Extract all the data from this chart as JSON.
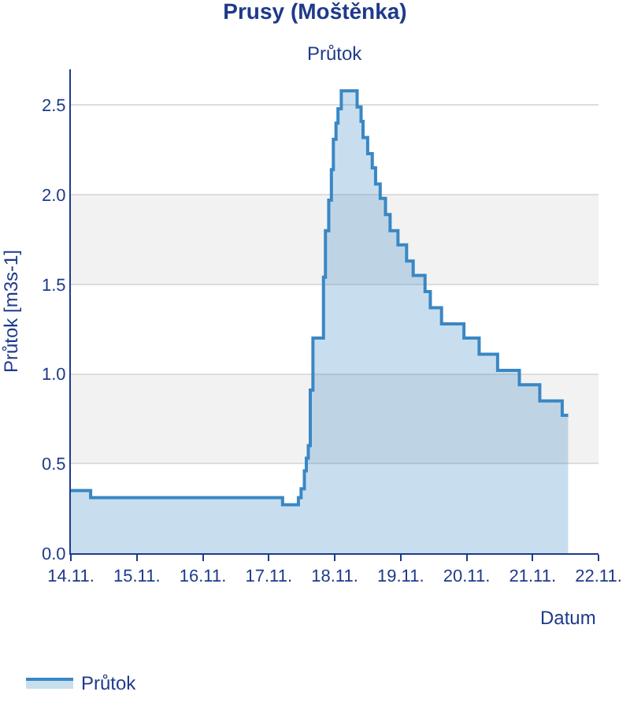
{
  "chart_data": {
    "type": "area",
    "title": "Prusy (Moštěnka)",
    "subtitle": "Průtok",
    "xlabel": "Datum",
    "ylabel": "Průtok [m3s-1]",
    "x": [
      "--11-14T00:00",
      "--11-14T07:12",
      "--11-14T07:12",
      "--11-17T05:02",
      "--11-17T05:02",
      "--11-17T10:48",
      "--11-17T10:48",
      "--11-17T11:46",
      "--11-17T11:46",
      "--11-17T12:58",
      "--11-17T12:58",
      "--11-17T13:41",
      "--11-17T13:41",
      "--11-17T14:24",
      "--11-17T14:24",
      "--11-17T15:07",
      "--11-17T15:07",
      "--11-17T16:05",
      "--11-17T16:05",
      "--11-17T19:55",
      "--11-17T19:55",
      "--11-17T20:38",
      "--11-17T20:38",
      "--11-17T21:50",
      "--11-17T21:50",
      "--11-17T22:48",
      "--11-17T22:48",
      "--11-17T23:31",
      "--11-17T23:31",
      "--11-18T00:29",
      "--11-18T00:29",
      "--11-18T01:12",
      "--11-18T01:12",
      "--11-18T02:24",
      "--11-18T02:24",
      "--11-18T08:10",
      "--11-18T08:10",
      "--11-18T09:36",
      "--11-18T09:36",
      "--11-18T10:19",
      "--11-18T10:19",
      "--11-18T12:00",
      "--11-18T12:00",
      "--11-18T13:41",
      "--11-18T13:41",
      "--11-18T14:53",
      "--11-18T14:53",
      "--11-18T16:34",
      "--11-18T16:34",
      "--11-18T18:29",
      "--11-18T18:29",
      "--11-18T20:10",
      "--11-18T20:10",
      "--11-18T23:02",
      "--11-18T23:02",
      "--11-19T02:10",
      "--11-19T02:10",
      "--11-19T04:34",
      "--11-19T04:34",
      "--11-19T08:53",
      "--11-19T08:53",
      "--11-19T10:48",
      "--11-19T10:48",
      "--11-19T14:53",
      "--11-19T14:53",
      "--11-19T23:02",
      "--11-19T23:02",
      "--11-20T04:34",
      "--11-20T04:34",
      "--11-20T11:17",
      "--11-20T11:17",
      "--11-20T19:12",
      "--11-20T19:12",
      "--11-21T02:38",
      "--11-21T02:38",
      "--11-21T10:48",
      "--11-21T10:48",
      "--11-21T12:58"
    ],
    "series": [
      {
        "name": "Průtok",
        "color": "#3a87c4",
        "values": [
          0.35,
          0.35,
          0.31,
          0.31,
          0.27,
          0.27,
          0.31,
          0.31,
          0.36,
          0.36,
          0.46,
          0.46,
          0.53,
          0.53,
          0.6,
          0.6,
          0.91,
          0.91,
          1.2,
          1.2,
          1.54,
          1.54,
          1.8,
          1.8,
          1.97,
          1.97,
          2.14,
          2.14,
          2.31,
          2.31,
          2.4,
          2.4,
          2.48,
          2.48,
          2.58,
          2.58,
          2.49,
          2.49,
          2.41,
          2.41,
          2.32,
          2.32,
          2.23,
          2.23,
          2.15,
          2.15,
          2.06,
          2.06,
          1.98,
          1.98,
          1.89,
          1.89,
          1.8,
          1.8,
          1.72,
          1.72,
          1.63,
          1.63,
          1.55,
          1.55,
          1.46,
          1.46,
          1.37,
          1.37,
          1.28,
          1.28,
          1.2,
          1.2,
          1.11,
          1.11,
          1.02,
          1.02,
          0.94,
          0.94,
          0.85,
          0.85,
          0.77,
          0.77
        ]
      }
    ],
    "xlim": [
      "--11-14",
      "--11-22"
    ],
    "xticks": [
      {
        "value": "--11-14",
        "label": "14.11."
      },
      {
        "value": "--11-15",
        "label": "15.11."
      },
      {
        "value": "--11-16",
        "label": "16.11."
      },
      {
        "value": "--11-17",
        "label": "17.11."
      },
      {
        "value": "--11-18",
        "label": "18.11."
      },
      {
        "value": "--11-19",
        "label": "19.11."
      },
      {
        "value": "--11-20",
        "label": "20.11."
      },
      {
        "value": "--11-21",
        "label": "21.11."
      },
      {
        "value": "--11-22",
        "label": "22.11."
      }
    ],
    "ylim": [
      0,
      2.7
    ],
    "yticks": [
      {
        "value": 0,
        "label": "0.0"
      },
      {
        "value": 0.5,
        "label": "0.5"
      },
      {
        "value": 1,
        "label": "1.0"
      },
      {
        "value": 1.5,
        "label": "1.5"
      },
      {
        "value": 2,
        "label": "2.0"
      },
      {
        "value": 2.5,
        "label": "2.5"
      }
    ],
    "bands": [
      {
        "axis": "y",
        "from": 0.5,
        "to": 1.0,
        "color": "#f2f2f2"
      },
      {
        "axis": "y",
        "from": 1.5,
        "to": 2.0,
        "color": "#f2f2f2"
      }
    ],
    "grid": "y",
    "legend": "bottom left",
    "marker": "none",
    "line_style": "solid"
  }
}
